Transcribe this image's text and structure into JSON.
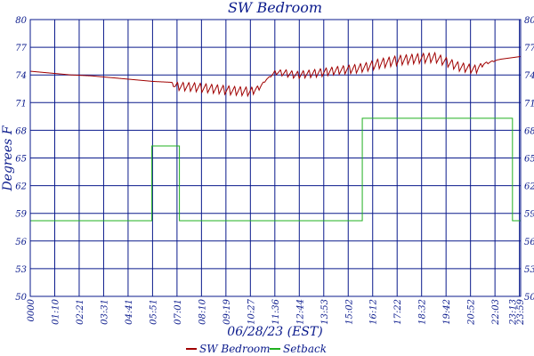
{
  "chart_data": {
    "type": "line",
    "title": "SW Bedroom",
    "xlabel": "06/28/23 (EST)",
    "ylabel": "Degrees F",
    "ylim": [
      50,
      80
    ],
    "yticks": [
      "50",
      "53",
      "56",
      "59",
      "62",
      "65",
      "68",
      "71",
      "74",
      "77",
      "80"
    ],
    "xticks": [
      "0000",
      "01:10",
      "02:21",
      "03:31",
      "04:41",
      "05:51",
      "07:01",
      "08:10",
      "09:19",
      "10:27",
      "11:36",
      "12:44",
      "13:53",
      "15:02",
      "16:12",
      "17:22",
      "18:32",
      "19:42",
      "20:52",
      "22:03",
      "23:13",
      "23:59"
    ],
    "grid": true,
    "legend_position": "bottom",
    "colors": {
      "frame": "#0a1a8c",
      "grid": "#0a1a8c",
      "text": "#0a1a8c"
    },
    "series": [
      {
        "name": "SW Bedroom",
        "color": "#a00000",
        "x": [
          0,
          1,
          2,
          3,
          4,
          5,
          6,
          6.9,
          7.1,
          8,
          9,
          10,
          10.8,
          11.2,
          11.6,
          12,
          12.5,
          13,
          14,
          15,
          16,
          16.5,
          17,
          18,
          19,
          19.8,
          20.5,
          21,
          21.8,
          22.2,
          23,
          24
        ],
        "y": [
          74.4,
          74.2,
          74.0,
          73.9,
          73.7,
          73.5,
          73.3,
          73.2,
          72.8,
          72.7,
          72.5,
          72.3,
          72.2,
          72.6,
          73.6,
          74.3,
          74.2,
          74.0,
          74.2,
          74.5,
          74.7,
          74.9,
          75.2,
          75.6,
          75.8,
          75.9,
          75.3,
          74.9,
          74.6,
          75.2,
          75.7,
          76.0
        ],
        "osc_amp": [
          0,
          0,
          0,
          0,
          0,
          0,
          0,
          0,
          0.9,
          1.0,
          1.0,
          1.0,
          1.0,
          0.5,
          0,
          0.5,
          0.8,
          0.8,
          0.9,
          0.9,
          1.0,
          1.0,
          1.1,
          1.1,
          1.1,
          1.1,
          1.0,
          1.0,
          1.0,
          0.3,
          0,
          0
        ],
        "osc_period_hours": 0.28
      },
      {
        "name": "Setback",
        "color": "#20b020",
        "x": [
          0,
          5.95,
          5.95,
          7.3,
          7.3,
          16.25,
          16.25,
          23.6,
          23.6,
          24
        ],
        "y": [
          58.2,
          58.2,
          66.3,
          66.3,
          58.2,
          58.2,
          69.3,
          69.3,
          58.2,
          58.2
        ]
      }
    ]
  }
}
